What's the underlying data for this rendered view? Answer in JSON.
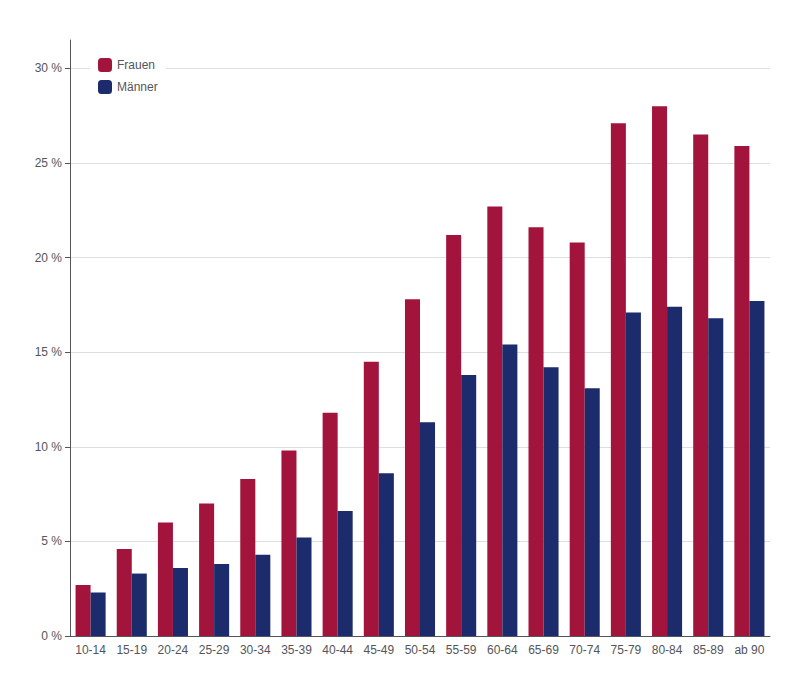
{
  "chart_data": {
    "type": "bar",
    "categories": [
      "10-14",
      "15-19",
      "20-24",
      "25-29",
      "30-34",
      "35-39",
      "40-44",
      "45-49",
      "50-54",
      "55-59",
      "60-64",
      "65-69",
      "70-74",
      "75-79",
      "80-84",
      "85-89",
      "ab 90"
    ],
    "series": [
      {
        "name": "Frauen",
        "color": "#A3143C",
        "values": [
          2.7,
          4.6,
          6.0,
          7.0,
          8.3,
          9.8,
          11.8,
          14.5,
          17.8,
          21.2,
          22.7,
          21.6,
          20.8,
          27.1,
          28.0,
          26.5,
          25.9
        ]
      },
      {
        "name": "Männer",
        "color": "#1B2B6B",
        "values": [
          2.3,
          3.3,
          3.6,
          3.8,
          4.3,
          5.2,
          6.6,
          8.6,
          11.3,
          13.8,
          15.4,
          14.2,
          13.1,
          17.1,
          17.4,
          16.8,
          17.7
        ]
      }
    ],
    "ylim": [
      0,
      31.5
    ],
    "yticks": [
      {
        "value": 0,
        "label": "0 %"
      },
      {
        "value": 5,
        "label": "5 %"
      },
      {
        "value": 10,
        "label": "10 %"
      },
      {
        "value": 15,
        "label": "15 %"
      },
      {
        "value": 20,
        "label": "20 %"
      },
      {
        "value": 25,
        "label": "25 %"
      },
      {
        "value": 30,
        "label": "30 %"
      }
    ],
    "grid": true,
    "legend": "upper left"
  }
}
